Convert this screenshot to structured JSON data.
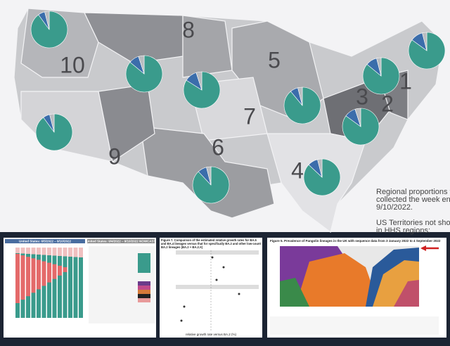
{
  "regions": [
    {
      "label": "10",
      "shares": [
        90,
        6,
        4
      ]
    },
    {
      "label": "8",
      "shares": [
        86,
        9,
        5
      ]
    },
    {
      "label": "5",
      "shares": [
        84,
        11,
        5
      ]
    },
    {
      "label": "7",
      "shares": [
        89,
        7,
        4
      ]
    },
    {
      "label": "9",
      "shares": [
        90,
        6,
        4
      ]
    },
    {
      "label": "6",
      "shares": [
        88,
        8,
        4
      ]
    },
    {
      "label": "4",
      "shares": [
        87,
        9,
        4
      ]
    },
    {
      "label": "3",
      "shares": [
        85,
        10,
        5
      ]
    },
    {
      "label": "2",
      "shares": [
        86,
        10,
        4
      ]
    },
    {
      "label": "1",
      "shares": [
        85,
        11,
        4
      ]
    }
  ],
  "share_colors": [
    "#3a9b8c",
    "#3b6dab",
    "#b9bcc0"
  ],
  "note": {
    "lines": [
      "Regional proportions fro",
      "collected the week endin",
      "9/10/2022.",
      "",
      "US Territories not shown",
      "in HHS regions:"
    ]
  },
  "panels": {
    "left_title": "United States: 6/5/2022 – 9/10/2022",
    "right_title": "United States: 9/4/2022 – 9/10/2022 NOWCAST",
    "fig7_title": "Figure 7. Comparison of the estimated relative growth rates for BA.5 and BA.4 lineages versus that for specifically BA.2 and other low-count BA.2 lineages (BA.2 + BA.2.X)",
    "fig7_axis": "relative growth rate versus BA.2 (%)",
    "fig5_title": "Figure 5. Prevalence of Pangolin lineages in the UK with sequence data from 3 January 2022 to 4 September 2022"
  }
}
